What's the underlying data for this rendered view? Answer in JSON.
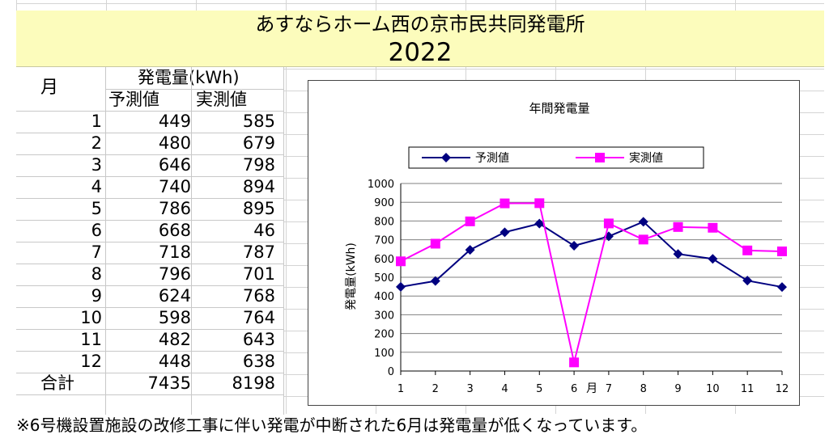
{
  "header": {
    "station_name": "あすならホーム西の京市民共同発電所",
    "year": "2022"
  },
  "table": {
    "month_header": "月",
    "generation_header": "発電量(kWh)",
    "forecast_header": "予測値",
    "actual_header": "実測値",
    "rows": [
      {
        "month": "1",
        "forecast": "449",
        "actual": "585"
      },
      {
        "month": "2",
        "forecast": "480",
        "actual": "679"
      },
      {
        "month": "3",
        "forecast": "646",
        "actual": "798"
      },
      {
        "month": "4",
        "forecast": "740",
        "actual": "894"
      },
      {
        "month": "5",
        "forecast": "786",
        "actual": "895"
      },
      {
        "month": "6",
        "forecast": "668",
        "actual": "46"
      },
      {
        "month": "7",
        "forecast": "718",
        "actual": "787"
      },
      {
        "month": "8",
        "forecast": "796",
        "actual": "701"
      },
      {
        "month": "9",
        "forecast": "624",
        "actual": "768"
      },
      {
        "month": "10",
        "forecast": "598",
        "actual": "764"
      },
      {
        "month": "11",
        "forecast": "482",
        "actual": "643"
      },
      {
        "month": "12",
        "forecast": "448",
        "actual": "638"
      }
    ],
    "total_label": "合計",
    "total_forecast": "7435",
    "total_actual": "8198"
  },
  "chart_data": {
    "type": "line",
    "title": "年間発電量",
    "xlabel": "月",
    "ylabel": "発電量(kWh)",
    "categories": [
      "1",
      "2",
      "3",
      "4",
      "5",
      "6",
      "7",
      "8",
      "9",
      "10",
      "11",
      "12"
    ],
    "ylim": [
      0,
      1000
    ],
    "yticks": [
      0,
      100,
      200,
      300,
      400,
      500,
      600,
      700,
      800,
      900,
      1000
    ],
    "grid": true,
    "legend_position": "top",
    "series": [
      {
        "name": "予測値",
        "color": "#000080",
        "marker": "diamond",
        "values": [
          449,
          480,
          646,
          740,
          786,
          668,
          718,
          796,
          624,
          598,
          482,
          448
        ]
      },
      {
        "name": "実測値",
        "color": "#ff00ff",
        "marker": "square",
        "values": [
          585,
          679,
          798,
          894,
          895,
          46,
          787,
          701,
          768,
          764,
          643,
          638
        ]
      }
    ]
  },
  "footnote": "※6号機設置施設の改修工事に伴い発電が中断された6月は発電量が低くなっています。"
}
